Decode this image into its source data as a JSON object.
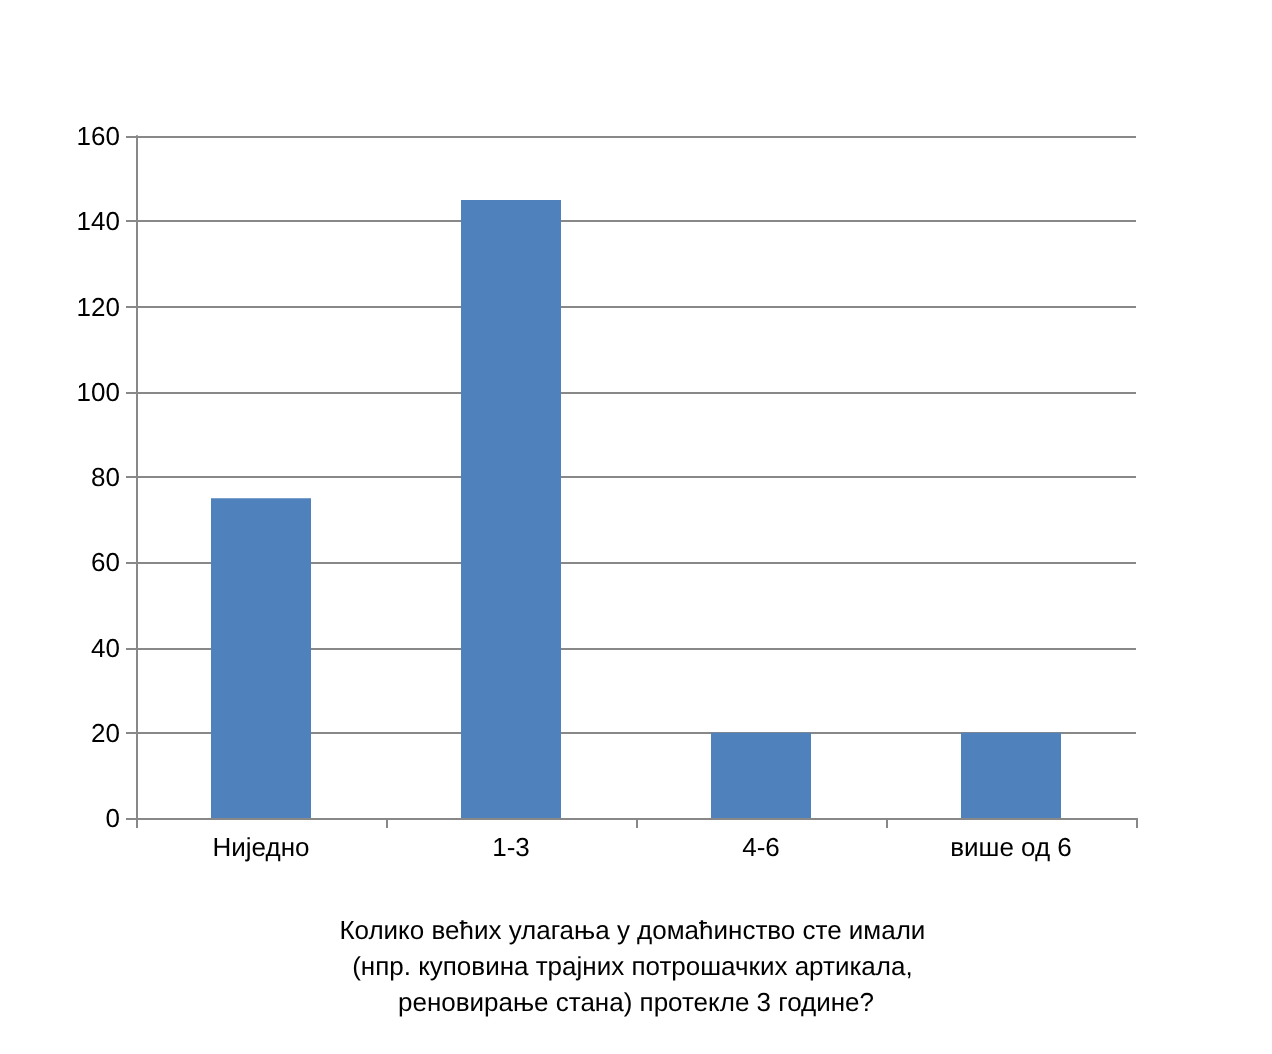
{
  "chart_data": {
    "type": "bar",
    "categories": [
      "Ниједно",
      "1-3",
      "4-6",
      "више од 6"
    ],
    "values": [
      75,
      145,
      20,
      20
    ],
    "color": "#4f81bd",
    "xlabel": "Колико већих улагања у домаћинство сте имали (нпр. куповина трајних потрошачких артикала, реновирање стана) протекле 3 године?",
    "ylim": [
      0,
      160
    ],
    "yticks": [
      0,
      20,
      40,
      60,
      80,
      100,
      120,
      140,
      160
    ],
    "grid": "y"
  }
}
